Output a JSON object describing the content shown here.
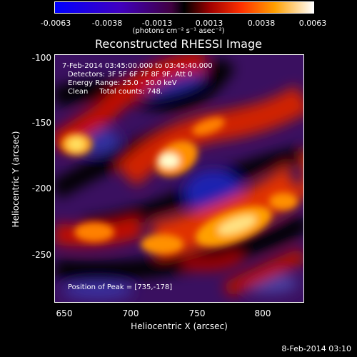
{
  "colorbar": {
    "ticks": [
      "-0.0063",
      "-0.0038",
      "-0.0013",
      "0.0013",
      "0.0038",
      "0.0063"
    ],
    "units": "(photons cm⁻² s⁻¹ asec⁻²)"
  },
  "title": "Reconstructed RHESSI Image",
  "info": {
    "time_range": "7-Feb-2014 03:45:00.000 to 03:45:40.000",
    "detectors": "Detectors: 3F 5F 6F 7F 8F 9F, Att 0",
    "energy": "Energy Range: 25.0 - 50.0 keV",
    "clean": "Clean     Total counts: 748.",
    "peak": "Position of Peak = [735,-178]"
  },
  "axes": {
    "xlabel": "Heliocentric X (arcsec)",
    "ylabel": "Heliocentric Y (arcsec)",
    "xticks": [
      "650",
      "700",
      "750",
      "800"
    ],
    "yticks": [
      "-100",
      "-150",
      "-200",
      "-250"
    ]
  },
  "footer": "8-Feb-2014 03:10"
}
